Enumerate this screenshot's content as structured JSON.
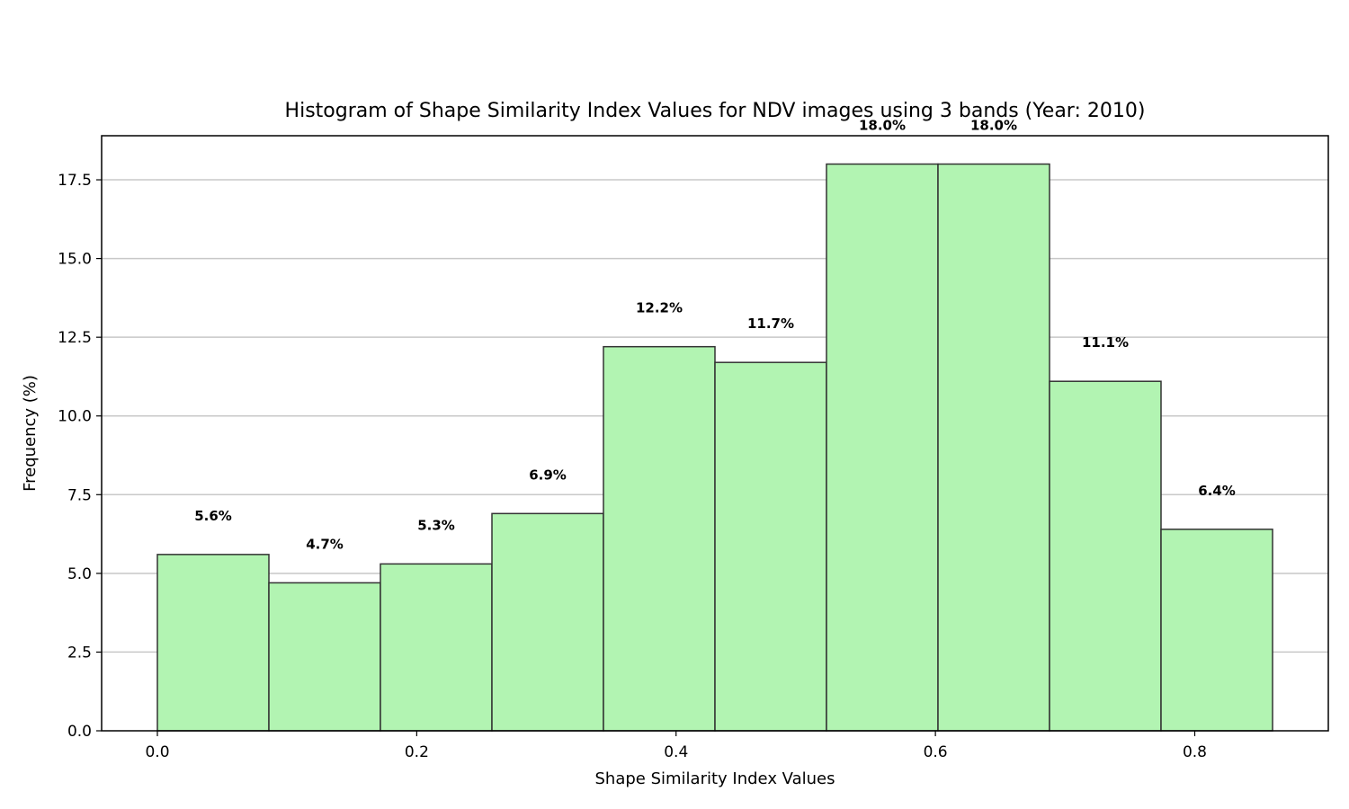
{
  "chart_data": {
    "type": "bar",
    "title": "Histogram of Shape Similarity Index Values for NDV images using 3 bands (Year: 2010)",
    "xlabel": "Shape Similarity Index Values",
    "ylabel": "Frequency (%)",
    "xlim": [
      -0.043,
      0.903
    ],
    "ylim": [
      0,
      18.9
    ],
    "x_ticks": [
      0.0,
      0.2,
      0.4,
      0.6,
      0.8
    ],
    "x_tick_labels": [
      "0.0",
      "0.2",
      "0.4",
      "0.6",
      "0.8"
    ],
    "y_ticks": [
      0.0,
      2.5,
      5.0,
      7.5,
      10.0,
      12.5,
      15.0,
      17.5
    ],
    "y_tick_labels": [
      "0.0",
      "2.5",
      "5.0",
      "7.5",
      "10.0",
      "12.5",
      "15.0",
      "17.5"
    ],
    "bin_edges": [
      0.0,
      0.086,
      0.172,
      0.258,
      0.344,
      0.43,
      0.516,
      0.602,
      0.688,
      0.774,
      0.86
    ],
    "values": [
      5.6,
      4.7,
      5.3,
      6.9,
      12.2,
      11.7,
      18.0,
      18.0,
      11.1,
      6.4
    ],
    "data_labels": [
      "5.6%",
      "4.7%",
      "5.3%",
      "6.9%",
      "12.2%",
      "11.7%",
      "18.0%",
      "18.0%",
      "11.1%",
      "6.4%"
    ],
    "grid": "horizontal",
    "bar_color": "#b2f4b2",
    "bar_edge_color": "#333333"
  }
}
